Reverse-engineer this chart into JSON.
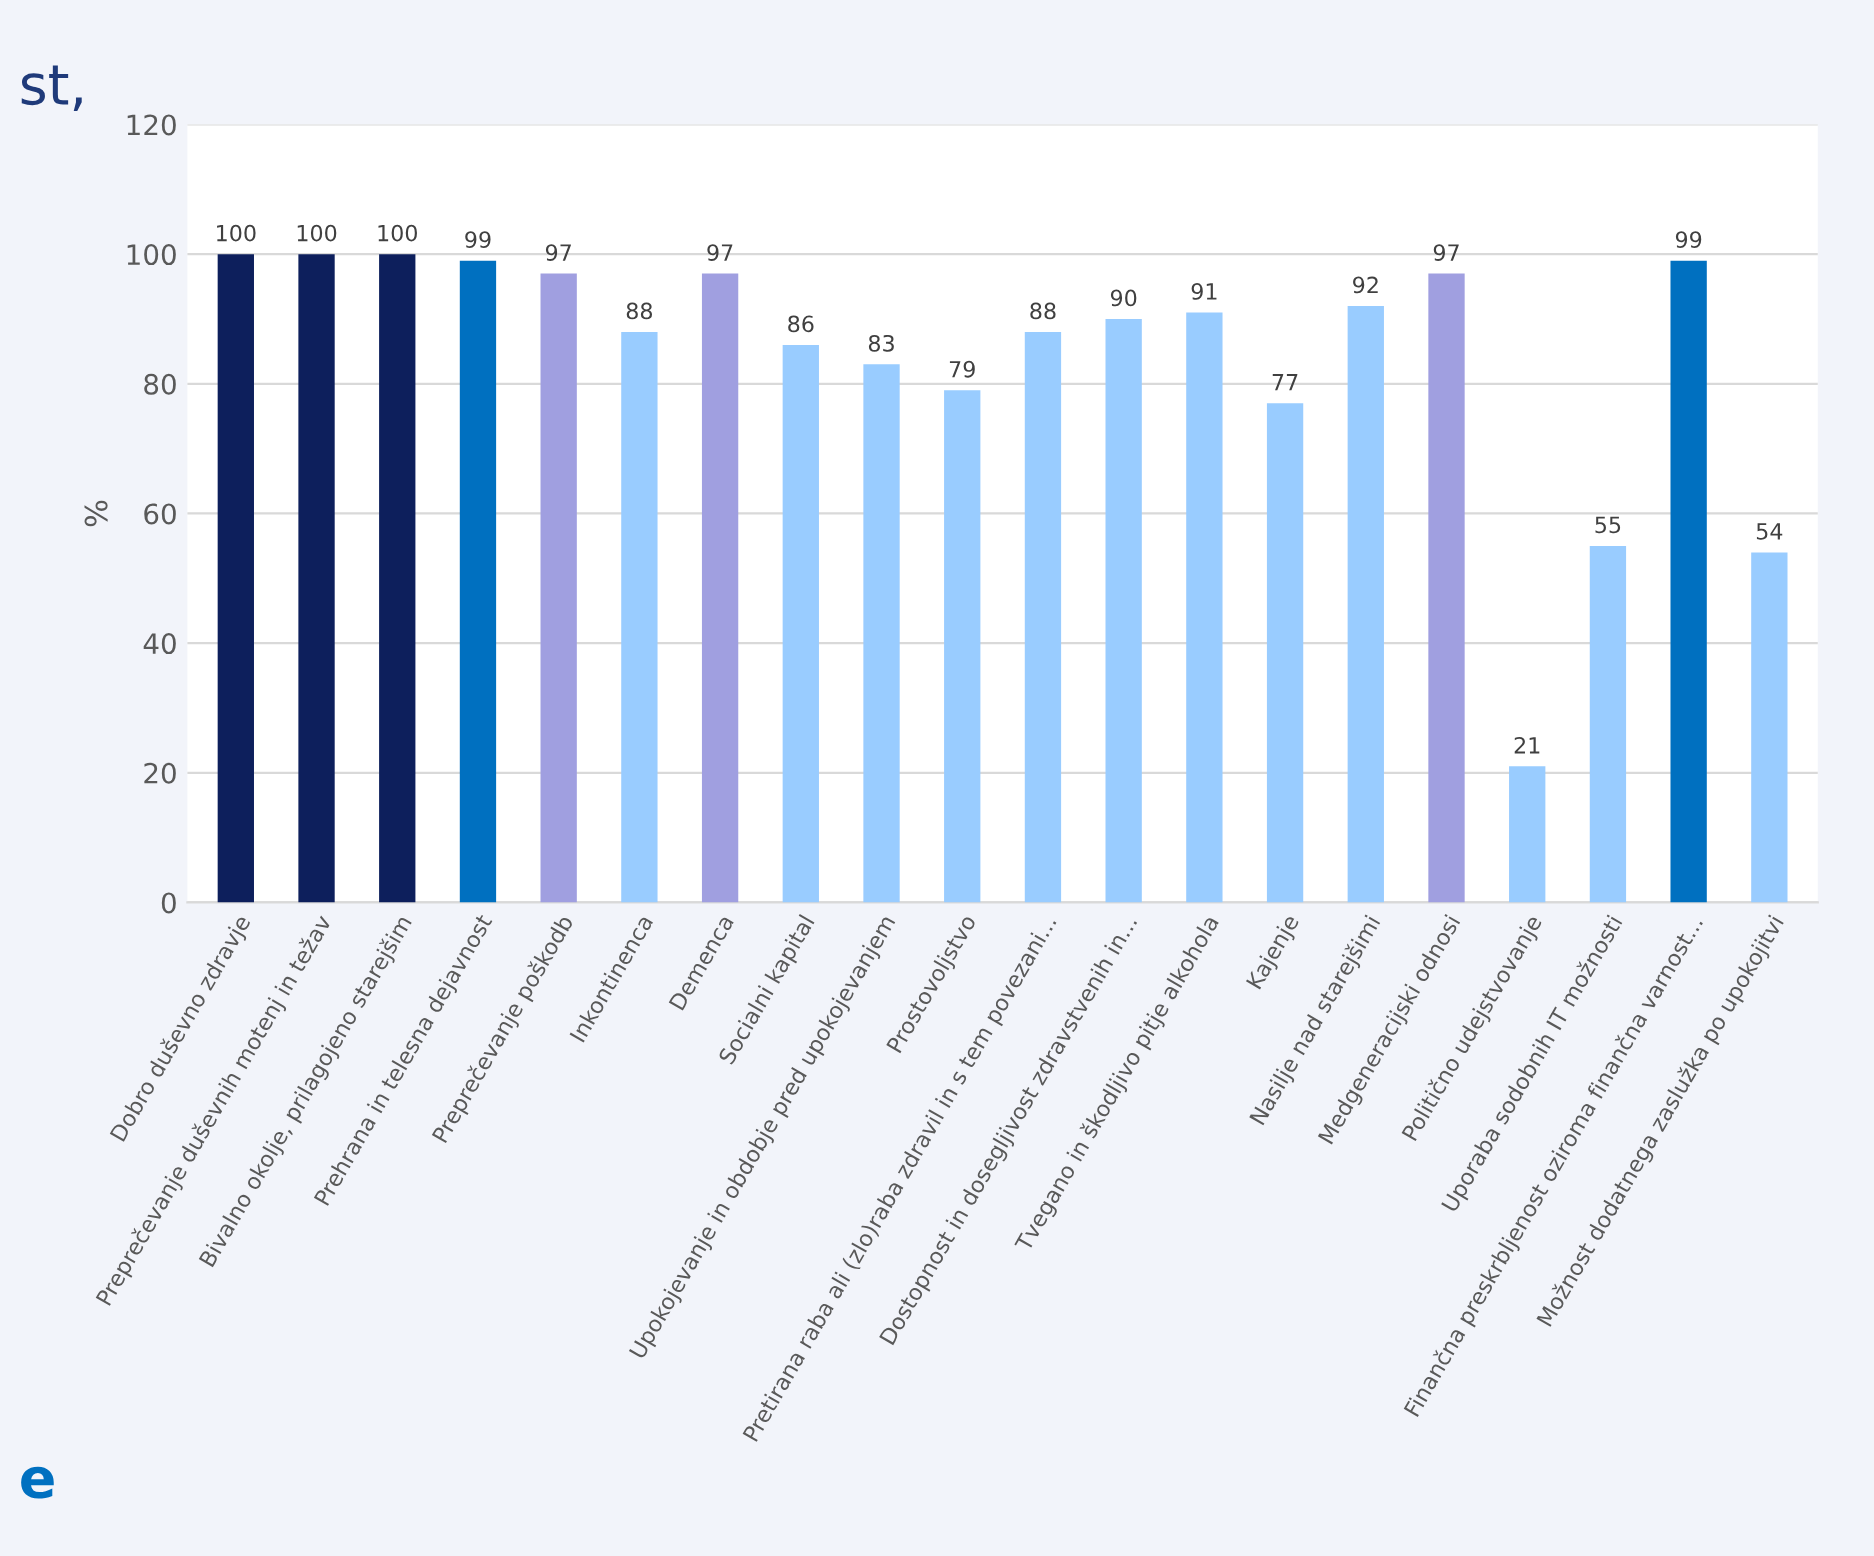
{
  "chart_data": {
    "type": "bar",
    "ylabel": "%",
    "categories": [
      "Dobro duševno zdravje",
      "Preprečevanje duševnih motenj in težav",
      "Bivalno okolje, prilagojeno starejšim",
      "Prehrana in telesna dejavnost",
      "Preprečevanje poškodb",
      "Inkontinenca",
      "Demenca",
      "Socialni kapital",
      "Upokojevanje in obdobje pred upokojevanjem",
      "Prostovoljstvo",
      "Pretirana raba ali (zlo)raba zdravil in s tem povezani...",
      "Dostopnost in dosegljivost zdravstvenih in...",
      "Tvegano in škodljivo pitje alkohola",
      "Kajenje",
      "Nasilje nad starejšimi",
      "Medgeneracijski odnosi",
      "Politično udejstvovanje",
      "Uporaba sodobnih IT možnosti",
      "Finančna preskrbljenost oziroma finančna varnost...",
      "Možnost dodatnega zaslužka po upokojitvi"
    ],
    "values": [
      100,
      100,
      100,
      99,
      97,
      88,
      97,
      86,
      83,
      79,
      88,
      90,
      91,
      77,
      92,
      97,
      21,
      55,
      99,
      54
    ],
    "colors": [
      "#0d1f5c",
      "#0d1f5c",
      "#0d1f5c",
      "#0070c0",
      "#a09fe0",
      "#99ccff",
      "#a09fe0",
      "#99ccff",
      "#99ccff",
      "#99ccff",
      "#99ccff",
      "#99ccff",
      "#99ccff",
      "#99ccff",
      "#99ccff",
      "#a09fe0",
      "#99ccff",
      "#99ccff",
      "#0070c0",
      "#99ccff"
    ],
    "ylim": [
      0,
      120
    ],
    "yticks": [
      0,
      20,
      40,
      60,
      80,
      100,
      120
    ],
    "grid": "y",
    "data_labels": true,
    "annotations": [
      "st,",
      "e"
    ]
  }
}
